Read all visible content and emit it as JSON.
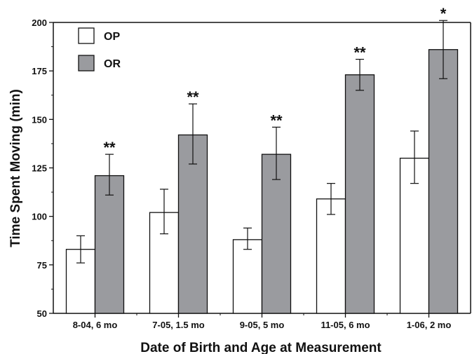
{
  "chart_data": {
    "type": "bar",
    "xlabel": "Date of Birth and Age at Measurement",
    "ylabel": "Time Spent Moving (min)",
    "ylim": [
      50,
      200
    ],
    "yticks": [
      50,
      75,
      100,
      125,
      150,
      175,
      200
    ],
    "grid": false,
    "legend_position": "top-left",
    "categories": [
      "8-04, 6 mo",
      "7-05, 1.5 mo",
      "9-05, 5 mo",
      "11-05, 6 mo",
      "1-06, 2 mo"
    ],
    "series": [
      {
        "name": "OP",
        "color": "#ffffff",
        "values": [
          83,
          102,
          88,
          109,
          130
        ],
        "error_low": [
          76,
          91,
          83,
          101,
          117
        ],
        "error_high": [
          90,
          114,
          94,
          117,
          144
        ]
      },
      {
        "name": "OR",
        "color": "#9a9b9f",
        "values": [
          121,
          142,
          132,
          173,
          186
        ],
        "error_low": [
          111,
          127,
          119,
          165,
          171
        ],
        "error_high": [
          132,
          158,
          146,
          181,
          201
        ]
      }
    ],
    "significance": [
      "**",
      "**",
      "**",
      "**",
      "*"
    ]
  }
}
